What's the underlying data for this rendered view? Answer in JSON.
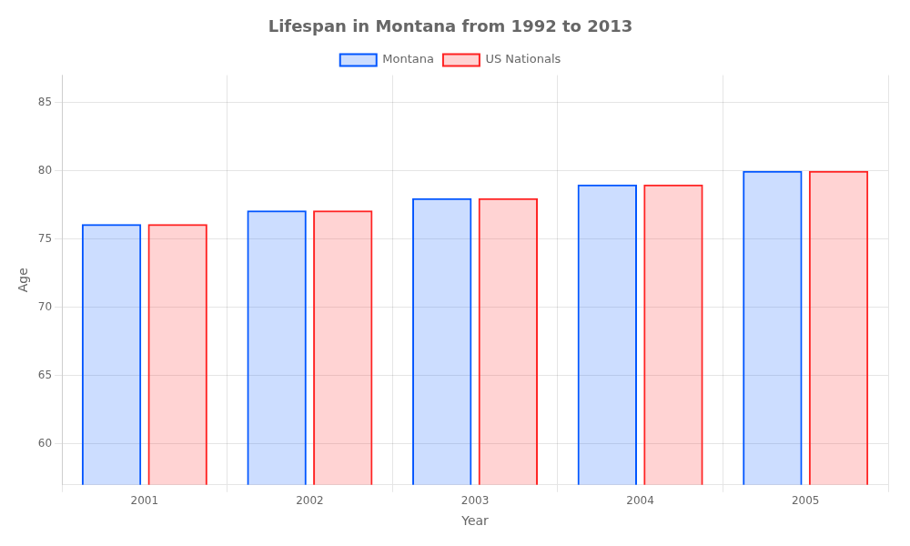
{
  "chart_data": {
    "type": "bar",
    "title": "Lifespan in Montana from 1992 to 2013",
    "x_label": "Year",
    "y_label": "Age",
    "categories": [
      "2001",
      "2002",
      "2003",
      "2004",
      "2005"
    ],
    "series": [
      {
        "name": "Montana",
        "color": "#0055ff",
        "values": [
          76.1,
          77.1,
          78.0,
          79.0,
          80.0
        ]
      },
      {
        "name": "US Nationals",
        "color": "#ff2222",
        "values": [
          76.1,
          77.1,
          78.0,
          79.0,
          80.0
        ]
      }
    ],
    "ylim": [
      57,
      87
    ],
    "yticks": [
      60,
      65,
      70,
      75,
      80,
      85
    ],
    "grid": true,
    "legend": "top"
  }
}
